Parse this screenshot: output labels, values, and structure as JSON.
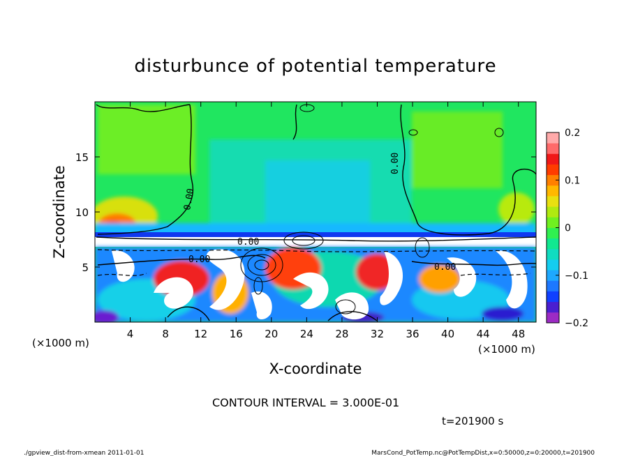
{
  "chart_data": {
    "type": "heatmap",
    "title": "disturbunce of potential temperature",
    "xlabel": "X-coordinate",
    "ylabel": "Z-coordinate",
    "xunit": "(×1000 m)",
    "yunit": "(×1000 m)",
    "xlim": [
      0,
      50
    ],
    "ylim": [
      0,
      20
    ],
    "xticks": [
      4,
      8,
      12,
      16,
      20,
      24,
      28,
      32,
      36,
      40,
      44,
      48
    ],
    "yticks": [
      5,
      10,
      15
    ],
    "colorbar": {
      "range": [
        -0.2,
        0.2
      ],
      "tick_labels": [
        "0.2",
        "0.1",
        "0",
        "−0.1",
        "−0.2"
      ],
      "tick_values": [
        0.2,
        0.1,
        0,
        -0.1,
        -0.2
      ],
      "colors": [
        "#9c2bc4",
        "#4a1fd0",
        "#1040ff",
        "#1d78ff",
        "#1ea8ff",
        "#14cdf0",
        "#10dcc0",
        "#10e890",
        "#30f050",
        "#70f020",
        "#b0ea10",
        "#e8e010",
        "#ffb800",
        "#ff8000",
        "#ff3c00",
        "#f01818",
        "#ff6a6a",
        "#ffaaaa"
      ]
    },
    "contour_labels": [
      "0.00",
      "0.00",
      "0.00",
      "0.00",
      "0.00"
    ],
    "contour_interval_text": "CONTOUR INTERVAL = 3.000E-01",
    "time_text": "t=201900 s"
  },
  "footer": {
    "left": "./gpview_dist-from-xmean  2011-01-01",
    "right": "MarsCond_PotTemp.nc@PotTempDist,x=0:50000,z=0:20000,t=201900"
  }
}
